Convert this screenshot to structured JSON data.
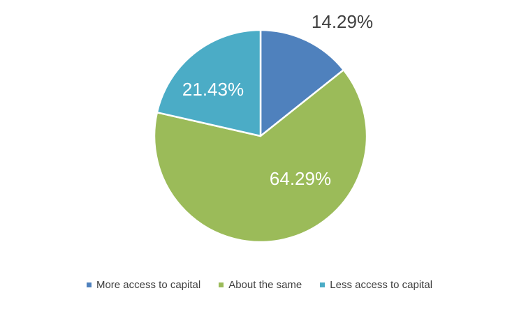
{
  "chart_data": {
    "type": "pie",
    "title": "",
    "categories": [
      "More access to capital",
      "About the same",
      "Less access to capital"
    ],
    "values": [
      14.29,
      64.29,
      21.43
    ],
    "labels": [
      "14.29%",
      "64.29%",
      "21.43%"
    ],
    "colors": [
      "#4F81BD",
      "#9BBB59",
      "#4BACC6"
    ],
    "start_angle_deg": 0,
    "direction": "clockwise",
    "legend_position": "bottom"
  }
}
